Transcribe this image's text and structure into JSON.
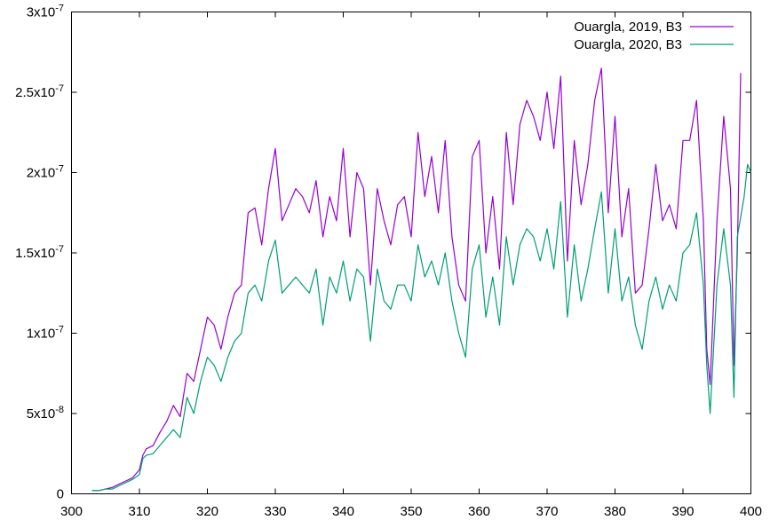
{
  "chart_data": {
    "type": "line",
    "xlim": [
      300,
      400
    ],
    "ylim": [
      0,
      3e-07
    ],
    "x_ticks": [
      {
        "value": 300,
        "label": "300"
      },
      {
        "value": 310,
        "label": "310"
      },
      {
        "value": 320,
        "label": "320"
      },
      {
        "value": 330,
        "label": "330"
      },
      {
        "value": 340,
        "label": "340"
      },
      {
        "value": 350,
        "label": "350"
      },
      {
        "value": 360,
        "label": "360"
      },
      {
        "value": 370,
        "label": "370"
      },
      {
        "value": 380,
        "label": "380"
      },
      {
        "value": 390,
        "label": "390"
      },
      {
        "value": 400,
        "label": "400"
      }
    ],
    "y_ticks": [
      {
        "value": 0,
        "label": "0"
      },
      {
        "value": 5e-08,
        "label": "5x10-8"
      },
      {
        "value": 1e-07,
        "label": "1x10-7"
      },
      {
        "value": 1.5e-07,
        "label": "1.5x10-7"
      },
      {
        "value": 2e-07,
        "label": "2x10-7"
      },
      {
        "value": 2.5e-07,
        "label": "2.5x10-7"
      },
      {
        "value": 3e-07,
        "label": "3x10-7"
      }
    ],
    "grid": false,
    "legend_position": "top-right",
    "series": [
      {
        "name": "Ouargla, 2019, B3",
        "color": "#9400d3",
        "x": [
          303,
          304,
          305,
          306,
          307,
          308,
          309,
          310,
          310.5,
          311,
          312,
          313,
          314,
          315,
          316,
          317,
          318,
          319,
          320,
          321,
          322,
          323,
          324,
          325,
          326,
          327,
          328,
          329,
          330,
          331,
          332,
          333,
          334,
          335,
          336,
          337,
          338,
          339,
          340,
          341,
          342,
          343,
          344,
          345,
          346,
          347,
          348,
          349,
          350,
          351,
          352,
          353,
          354,
          355,
          356,
          357,
          358,
          359,
          360,
          361,
          362,
          363,
          364,
          365,
          366,
          367,
          368,
          369,
          370,
          371,
          372,
          373,
          374,
          375,
          376,
          377,
          378,
          379,
          380,
          381,
          382,
          383,
          384,
          385,
          386,
          387,
          388,
          389,
          390,
          391,
          392,
          393,
          393.5,
          394,
          395,
          396,
          397,
          397.5,
          398,
          398.5
        ],
        "y": [
          2e-09,
          2e-09,
          3e-09,
          4e-09,
          6e-09,
          8e-09,
          1e-08,
          1.5e-08,
          2.4e-08,
          2.8e-08,
          3e-08,
          3.8e-08,
          4.5e-08,
          5.5e-08,
          4.8e-08,
          7.5e-08,
          7e-08,
          9e-08,
          1.1e-07,
          1.05e-07,
          9e-08,
          1.1e-07,
          1.25e-07,
          1.3e-07,
          1.75e-07,
          1.78e-07,
          1.55e-07,
          1.9e-07,
          2.15e-07,
          1.7e-07,
          1.8e-07,
          1.9e-07,
          1.85e-07,
          1.75e-07,
          1.95e-07,
          1.6e-07,
          1.85e-07,
          1.7e-07,
          2.15e-07,
          1.6e-07,
          2e-07,
          1.9e-07,
          1.3e-07,
          1.9e-07,
          1.7e-07,
          1.55e-07,
          1.8e-07,
          1.85e-07,
          1.6e-07,
          2.25e-07,
          1.85e-07,
          2.1e-07,
          1.75e-07,
          2.2e-07,
          1.6e-07,
          1.3e-07,
          1.2e-07,
          2.1e-07,
          2.2e-07,
          1.5e-07,
          1.85e-07,
          1.4e-07,
          2.25e-07,
          1.8e-07,
          2.3e-07,
          2.45e-07,
          2.35e-07,
          2.2e-07,
          2.5e-07,
          2.15e-07,
          2.6e-07,
          1.45e-07,
          2.2e-07,
          1.8e-07,
          2.05e-07,
          2.45e-07,
          2.65e-07,
          1.75e-07,
          2.35e-07,
          1.6e-07,
          1.9e-07,
          1.25e-07,
          1.3e-07,
          1.65e-07,
          2.05e-07,
          1.7e-07,
          1.8e-07,
          1.65e-07,
          2.2e-07,
          2.2e-07,
          2.45e-07,
          1.7e-07,
          9e-08,
          6.8e-08,
          1.7e-07,
          2.35e-07,
          1.9e-07,
          8e-08,
          1.5e-07,
          2.62e-07
        ]
      },
      {
        "name": "Ouargla, 2020, B3",
        "color": "#009e73",
        "x": [
          303,
          304,
          305,
          306,
          307,
          308,
          309,
          310,
          310.5,
          311,
          312,
          313,
          314,
          315,
          316,
          317,
          318,
          319,
          320,
          321,
          322,
          323,
          324,
          325,
          326,
          327,
          328,
          329,
          330,
          331,
          332,
          333,
          334,
          335,
          336,
          337,
          338,
          339,
          340,
          341,
          342,
          343,
          344,
          345,
          346,
          347,
          348,
          349,
          350,
          351,
          352,
          353,
          354,
          355,
          356,
          357,
          358,
          359,
          360,
          361,
          362,
          363,
          364,
          365,
          366,
          367,
          368,
          369,
          370,
          371,
          372,
          373,
          374,
          375,
          376,
          377,
          378,
          379,
          380,
          381,
          382,
          383,
          384,
          385,
          386,
          387,
          388,
          389,
          390,
          391,
          392,
          393,
          393.5,
          394,
          395,
          396,
          397,
          397.5,
          398,
          399,
          399.5,
          400
        ],
        "y": [
          2e-09,
          2e-09,
          3e-09,
          3e-09,
          5e-09,
          7e-09,
          9e-09,
          1.2e-08,
          2.2e-08,
          2.4e-08,
          2.5e-08,
          3e-08,
          3.5e-08,
          4e-08,
          3.5e-08,
          6e-08,
          5e-08,
          7e-08,
          8.5e-08,
          8e-08,
          7e-08,
          8.5e-08,
          9.5e-08,
          1e-07,
          1.25e-07,
          1.3e-07,
          1.2e-07,
          1.45e-07,
          1.58e-07,
          1.25e-07,
          1.3e-07,
          1.35e-07,
          1.3e-07,
          1.25e-07,
          1.4e-07,
          1.05e-07,
          1.35e-07,
          1.25e-07,
          1.45e-07,
          1.2e-07,
          1.4e-07,
          1.35e-07,
          9.5e-08,
          1.4e-07,
          1.2e-07,
          1.15e-07,
          1.3e-07,
          1.3e-07,
          1.2e-07,
          1.55e-07,
          1.35e-07,
          1.45e-07,
          1.3e-07,
          1.5e-07,
          1.2e-07,
          1e-07,
          8.5e-08,
          1.4e-07,
          1.55e-07,
          1.1e-07,
          1.35e-07,
          1.05e-07,
          1.6e-07,
          1.3e-07,
          1.55e-07,
          1.65e-07,
          1.6e-07,
          1.45e-07,
          1.65e-07,
          1.4e-07,
          1.82e-07,
          1.1e-07,
          1.55e-07,
          1.2e-07,
          1.4e-07,
          1.65e-07,
          1.88e-07,
          1.25e-07,
          1.65e-07,
          1.2e-07,
          1.35e-07,
          1.05e-07,
          9e-08,
          1.2e-07,
          1.35e-07,
          1.15e-07,
          1.3e-07,
          1.2e-07,
          1.5e-07,
          1.55e-07,
          1.75e-07,
          1.3e-07,
          8e-08,
          5e-08,
          1.3e-07,
          1.65e-07,
          1.3e-07,
          6e-08,
          1.6e-07,
          1.85e-07,
          2.05e-07,
          2e-07
        ]
      }
    ]
  }
}
